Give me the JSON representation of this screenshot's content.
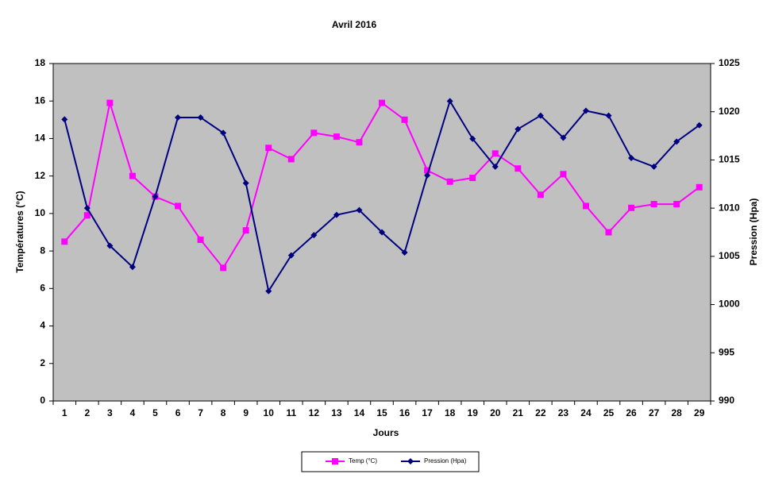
{
  "chart_data": {
    "type": "line",
    "title": "Avril 2016",
    "x_label": "Jours",
    "y_label": "Températures (°C)",
    "y2_label": "Pression (Hpa)",
    "categories": [
      1,
      2,
      3,
      4,
      5,
      6,
      7,
      8,
      9,
      10,
      11,
      12,
      13,
      14,
      15,
      16,
      17,
      18,
      19,
      20,
      21,
      22,
      23,
      24,
      25,
      26,
      27,
      28,
      29
    ],
    "series": [
      {
        "name": "Temp (°C)",
        "color": "#ff00ff",
        "marker": "square",
        "values": [
          8.5,
          9.9,
          15.9,
          12.0,
          10.9,
          10.4,
          8.6,
          7.1,
          9.1,
          13.5,
          12.9,
          14.3,
          14.1,
          13.8,
          15.9,
          15.0,
          12.3,
          11.7,
          11.9,
          13.2,
          12.4,
          11.0,
          12.1,
          10.4,
          9.0,
          10.3,
          10.5,
          10.5,
          11.4
        ]
      },
      {
        "name": "Pression (Hpa)",
        "color": "#000080",
        "marker": "diamond",
        "axis": "y2",
        "values": [
          1019.2,
          1010.0,
          1006.1,
          1003.9,
          1011.2,
          1019.4,
          1019.4,
          1017.8,
          1012.6,
          1001.4,
          1005.1,
          1007.2,
          1009.3,
          1009.8,
          1007.5,
          1005.4,
          1013.4,
          1021.1,
          1017.2,
          1014.3,
          1018.2,
          1019.6,
          1017.3,
          1020.1,
          1019.6,
          1015.2,
          1014.3,
          1016.9,
          1018.6
        ]
      }
    ],
    "ylim": [
      0,
      18
    ],
    "yticks": [
      0,
      2,
      4,
      6,
      8,
      10,
      12,
      14,
      16,
      18
    ],
    "y2lim": [
      990,
      1025
    ],
    "y2ticks": [
      990,
      995,
      1000,
      1005,
      1010,
      1015,
      1020,
      1025
    ],
    "plot_background": "#c0c0c0",
    "grid": false
  }
}
